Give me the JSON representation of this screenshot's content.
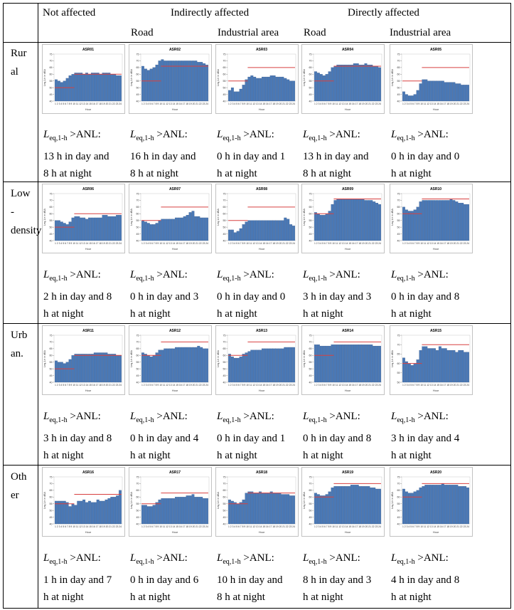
{
  "headers": {
    "not_affected": "Not affected",
    "indirectly": "Indirectly affected",
    "directly": "Directly affected",
    "road": "Road",
    "industrial": "Industrial area"
  },
  "row_labels": [
    "Rur\nal",
    "Low\n-\ndensity",
    "Urb\nan.",
    "Oth\ner"
  ],
  "caption": {
    "leq": "L",
    "sub": "eq,1-h",
    "anl": " >ANL:"
  },
  "captions": [
    [
      "13 h in day and\n8 h at night",
      "16 h in day and\n8 h at night",
      "0 h in day and 1\nh at night",
      "13 h in day and\n8 h at night",
      "0 h in day and 0\nh at night"
    ],
    [
      "2 h in day and 8\nh at night",
      "0 h in day and 3\nh at night",
      "0 h in day and 0\nh at night",
      "3 h in day and 3\nh at night",
      "0 h in day and 8\nh at night"
    ],
    [
      "3 h in day and 8\nh at night",
      "0 h in day and 4\nh at night",
      "0 h in day and 1\nh at night",
      "0 h in day and 8\nh at night",
      "3 h in day and 4\nh at night"
    ],
    [
      "1 h in day and 7\nh at night",
      "0 h in day and 6\nh at night",
      "10 h in day and\n8 h at night",
      "8 h in day and 3\nh at night",
      "4 h in day and 8\nh at night"
    ]
  ],
  "colors": {
    "bar": "#4a78b5",
    "bar_edge": "#2d4f80",
    "limit": "#d84040"
  },
  "chart_data": [
    {
      "type": "bar",
      "title": "ASR01",
      "xlabel": "Hour",
      "ylabel": "Leq,1-h in dBA",
      "ylim": [
        40,
        75
      ],
      "yticks": [
        40,
        45,
        50,
        55,
        60,
        65,
        70,
        75
      ],
      "xticks": "1 2 3 4 5 6 7 8 9 10 11 12 13 14 15 16 17 18 19 20 21 22 23 24",
      "values": [
        56,
        55,
        54,
        55,
        57,
        59,
        60,
        61,
        61,
        61,
        60,
        61,
        60,
        61,
        61,
        61,
        60,
        61,
        61,
        61,
        60,
        60,
        59,
        59
      ],
      "anl_night": 50,
      "anl_day": 60
    },
    {
      "type": "bar",
      "title": "ASR02",
      "xlabel": "Hour",
      "ylabel": "Leq,1-h in dBA",
      "ylim": [
        40,
        75
      ],
      "yticks": [
        40,
        45,
        50,
        55,
        60,
        65,
        70,
        75
      ],
      "xticks": "1 2 3 4 5 6 7 8 9 10 11 12 13 14 15 16 17 18 19 20 21 22 23 24",
      "values": [
        66,
        64,
        63,
        64,
        65,
        67,
        70,
        71,
        70,
        70,
        70,
        70,
        70,
        70,
        70,
        70,
        70,
        70,
        70,
        70,
        69,
        69,
        68,
        67
      ],
      "anl_night": 55,
      "anl_day": 66
    },
    {
      "type": "bar",
      "title": "ASR03",
      "xlabel": "Hour",
      "ylabel": "Leq,1-h in dBA",
      "ylim": [
        40,
        75
      ],
      "yticks": [
        40,
        45,
        50,
        55,
        60,
        65,
        70,
        75
      ],
      "xticks": "1 2 3 4 5 6 7 8 9 10 11 12 13 14 15 16 17 18 19 20 21 22 23 24",
      "values": [
        48,
        50,
        47,
        47,
        49,
        52,
        56,
        58,
        59,
        58,
        57,
        57,
        58,
        58,
        58,
        59,
        59,
        58,
        58,
        58,
        57,
        56,
        55,
        55
      ],
      "anl_night": 55,
      "anl_day": 65
    },
    {
      "type": "bar",
      "title": "ASR04",
      "xlabel": "Hour",
      "ylabel": "Leq,1-h in dBA",
      "ylim": [
        40,
        75
      ],
      "yticks": [
        40,
        45,
        50,
        55,
        60,
        65,
        70,
        75
      ],
      "xticks": "1 2 3 4 5 6 7 8 9 10 11 12 13 14 15 16 17 18 19 20 21 22 23 24",
      "values": [
        62,
        61,
        60,
        59,
        60,
        62,
        65,
        66,
        67,
        67,
        67,
        67,
        67,
        67,
        68,
        68,
        67,
        67,
        68,
        67,
        67,
        66,
        66,
        65
      ],
      "anl_night": 55,
      "anl_day": 66
    },
    {
      "type": "bar",
      "title": "ASR05",
      "xlabel": "Hour",
      "ylabel": "Leq,1-h in dBA",
      "ylim": [
        40,
        75
      ],
      "yticks": [
        40,
        45,
        50,
        55,
        60,
        65,
        70,
        75
      ],
      "xticks": "1 2 3 4 5 6 7 8 9 10 11 12 13 14 15 16 17 18 19 20 21 22 23 24",
      "values": [
        47,
        45,
        44,
        44,
        45,
        48,
        53,
        56,
        56,
        55,
        55,
        55,
        55,
        55,
        55,
        54,
        54,
        54,
        54,
        53,
        53,
        52,
        52,
        52
      ],
      "anl_night": 55,
      "anl_day": 65
    },
    {
      "type": "bar",
      "title": "ASR06",
      "xlabel": "Hour",
      "ylabel": "Leq,1-h in dBA",
      "ylim": [
        40,
        75
      ],
      "yticks": [
        40,
        45,
        50,
        55,
        60,
        65,
        70,
        75
      ],
      "xticks": "1 2 3 4 5 6 7 8 9 10 11 12 13 14 15 16 17 18 19 20 21 22 23 24",
      "values": [
        55,
        55,
        54,
        53,
        52,
        54,
        57,
        58,
        58,
        57,
        57,
        56,
        57,
        57,
        57,
        57,
        57,
        59,
        59,
        58,
        58,
        58,
        59,
        59
      ],
      "anl_night": 50,
      "anl_day": 60
    },
    {
      "type": "bar",
      "title": "ASR07",
      "xlabel": "Hour",
      "ylabel": "Leq,1-h in dBA",
      "ylim": [
        40,
        75
      ],
      "yticks": [
        40,
        45,
        50,
        55,
        60,
        65,
        70,
        75
      ],
      "xticks": "1 2 3 4 5 6 7 8 9 10 11 12 13 14 15 16 17 18 19 20 21 22 23 24",
      "values": [
        55,
        54,
        53,
        52,
        52,
        53,
        55,
        56,
        56,
        56,
        56,
        56,
        57,
        57,
        57,
        58,
        59,
        61,
        62,
        58,
        58,
        57,
        57,
        57
      ],
      "anl_night": 55,
      "anl_day": 65
    },
    {
      "type": "bar",
      "title": "ASR08",
      "xlabel": "Hour",
      "ylabel": "Leq,1-h in dBA",
      "ylim": [
        40,
        75
      ],
      "yticks": [
        40,
        45,
        50,
        55,
        60,
        65,
        70,
        75
      ],
      "xticks": "1 2 3 4 5 6 7 8 9 10 11 12 13 14 15 16 17 18 19 20 21 22 23 24",
      "values": [
        48,
        48,
        46,
        47,
        49,
        52,
        54,
        55,
        55,
        55,
        55,
        55,
        55,
        55,
        55,
        55,
        55,
        55,
        55,
        55,
        57,
        56,
        52,
        51
      ],
      "anl_night": 55,
      "anl_day": 65
    },
    {
      "type": "bar",
      "title": "ASR09",
      "xlabel": "Hour",
      "ylabel": "Leq,1-h in dBA",
      "ylim": [
        40,
        75
      ],
      "yticks": [
        40,
        45,
        50,
        55,
        60,
        65,
        70,
        75
      ],
      "xticks": "1 2 3 4 5 6 7 8 9 10 11 12 13 14 15 16 17 18 19 20 21 22 23 24",
      "values": [
        61,
        60,
        59,
        59,
        60,
        62,
        67,
        70,
        71,
        71,
        71,
        71,
        71,
        71,
        71,
        71,
        71,
        71,
        70,
        70,
        70,
        69,
        68,
        67
      ],
      "anl_night": 60,
      "anl_day": 71
    },
    {
      "type": "bar",
      "title": "ASR10",
      "xlabel": "Hour",
      "ylabel": "Leq,1-h in dBA",
      "ylim": [
        40,
        75
      ],
      "yticks": [
        40,
        45,
        50,
        55,
        60,
        65,
        70,
        75
      ],
      "xticks": "1 2 3 4 5 6 7 8 9 10 11 12 13 14 15 16 17 18 19 20 21 22 23 24",
      "values": [
        65,
        63,
        62,
        62,
        63,
        65,
        69,
        70,
        70,
        70,
        70,
        70,
        70,
        70,
        70,
        70,
        70,
        71,
        70,
        69,
        68,
        68,
        67,
        67
      ],
      "anl_night": 60,
      "anl_day": 71
    },
    {
      "type": "bar",
      "title": "ASR11",
      "xlabel": "Hour",
      "ylabel": "Leq,1-h in dBA",
      "ylim": [
        40,
        75
      ],
      "yticks": [
        40,
        45,
        50,
        55,
        60,
        65,
        70,
        75
      ],
      "xticks": "1 2 3 4 5 6 7 8 9 10 11 12 13 14 15 16 17 18 19 20 21 22 23 24",
      "values": [
        56,
        55,
        55,
        54,
        55,
        57,
        60,
        61,
        61,
        61,
        61,
        61,
        61,
        61,
        62,
        62,
        62,
        62,
        62,
        61,
        61,
        61,
        60,
        60
      ],
      "anl_night": 50,
      "anl_day": 60
    },
    {
      "type": "bar",
      "title": "ASR12",
      "xlabel": "Hour",
      "ylabel": "Leq,1-h in dBA",
      "ylim": [
        40,
        75
      ],
      "yticks": [
        40,
        45,
        50,
        55,
        60,
        65,
        70,
        75
      ],
      "xticks": "1 2 3 4 5 6 7 8 9 10 11 12 13 14 15 16 17 18 19 20 21 22 23 24",
      "values": [
        62,
        61,
        60,
        59,
        60,
        62,
        64,
        64,
        65,
        65,
        65,
        65,
        66,
        66,
        66,
        66,
        66,
        66,
        66,
        66,
        67,
        66,
        65,
        65
      ],
      "anl_night": 60,
      "anl_day": 70
    },
    {
      "type": "bar",
      "title": "ASR13",
      "xlabel": "Hour",
      "ylabel": "Leq,1-h in dBA",
      "ylim": [
        40,
        75
      ],
      "yticks": [
        40,
        45,
        50,
        55,
        60,
        65,
        70,
        75
      ],
      "xticks": "1 2 3 4 5 6 7 8 9 10 11 12 13 14 15 16 17 18 19 20 21 22 23 24",
      "values": [
        61,
        59,
        58,
        58,
        59,
        61,
        62,
        63,
        64,
        64,
        64,
        64,
        65,
        65,
        65,
        65,
        65,
        65,
        65,
        65,
        66,
        66,
        66,
        66
      ],
      "anl_night": 60,
      "anl_day": 70
    },
    {
      "type": "bar",
      "title": "ASR14",
      "xlabel": "Hour",
      "ylabel": "Leq,1-h in dBA",
      "ylim": [
        40,
        75
      ],
      "yticks": [
        40,
        45,
        50,
        55,
        60,
        65,
        70,
        75
      ],
      "xticks": "1 2 3 4 5 6 7 8 9 10 11 12 13 14 15 16 17 18 19 20 21 22 23 24",
      "values": [
        68,
        68,
        67,
        67,
        67,
        67,
        68,
        68,
        68,
        68,
        68,
        68,
        68,
        68,
        68,
        68,
        68,
        68,
        68,
        68,
        68,
        67,
        67,
        67
      ],
      "anl_night": 60,
      "anl_day": 70
    },
    {
      "type": "bar",
      "title": "ASR15",
      "xlabel": "Hour",
      "ylabel": "Leq,1-h in dBA",
      "ylim": [
        50,
        75
      ],
      "yticks": [
        50,
        55,
        60,
        65,
        70,
        75
      ],
      "xticks": "1 2 3 4 5 6 7 8 9 10 11 12 13 14 15 16 17 18 19 20 21 22 23 24",
      "values": [
        63,
        61,
        60,
        59,
        60,
        62,
        67,
        69,
        69,
        68,
        68,
        68,
        67,
        69,
        68,
        68,
        67,
        67,
        67,
        66,
        67,
        67,
        66,
        66
      ],
      "anl_night": 60,
      "anl_day": 70
    },
    {
      "type": "bar",
      "title": "ASR16",
      "xlabel": "Hour",
      "ylabel": "Leq,1-h in dBA",
      "ylim": [
        40,
        75
      ],
      "yticks": [
        40,
        45,
        50,
        55,
        60,
        65,
        70,
        75
      ],
      "xticks": "1 2 3 4 5 6 7 8 9 10 11 12 13 14 15 16 17 18 19 20 21 22 23 24",
      "values": [
        57,
        57,
        57,
        57,
        56,
        53,
        55,
        54,
        57,
        57,
        58,
        56,
        57,
        56,
        56,
        58,
        57,
        57,
        58,
        59,
        60,
        60,
        61,
        65
      ],
      "anl_night": 55,
      "anl_day": 62
    },
    {
      "type": "bar",
      "title": "ASR17",
      "xlabel": "Hour",
      "ylabel": "Leq,1-h in dBA",
      "ylim": [
        40,
        75
      ],
      "yticks": [
        40,
        45,
        50,
        55,
        60,
        65,
        70,
        75
      ],
      "xticks": "1 2 3 4 5 6 7 8 9 10 11 12 13 14 15 16 17 18 19 20 21 22 23 24",
      "values": [
        54,
        54,
        53,
        53,
        54,
        56,
        58,
        59,
        59,
        59,
        59,
        59,
        60,
        60,
        60,
        60,
        61,
        61,
        62,
        60,
        60,
        60,
        59,
        59
      ],
      "anl_night": 55,
      "anl_day": 63
    },
    {
      "type": "bar",
      "title": "ASR18",
      "xlabel": "Hour",
      "ylabel": "Leq,1-h in dBA",
      "ylim": [
        40,
        75
      ],
      "yticks": [
        40,
        45,
        50,
        55,
        60,
        65,
        70,
        75
      ],
      "xticks": "1 2 3 4 5 6 7 8 9 10 11 12 13 14 15 16 17 18 19 20 21 22 23 24",
      "values": [
        58,
        57,
        56,
        55,
        56,
        58,
        63,
        64,
        64,
        63,
        63,
        64,
        63,
        63,
        63,
        64,
        63,
        63,
        63,
        62,
        62,
        62,
        61,
        61
      ],
      "anl_night": 55,
      "anl_day": 63
    },
    {
      "type": "bar",
      "title": "ASR19",
      "xlabel": "Hour",
      "ylabel": "Leq,1-h in dBA",
      "ylim": [
        40,
        75
      ],
      "yticks": [
        40,
        45,
        50,
        55,
        60,
        65,
        70,
        75
      ],
      "xticks": "1 2 3 4 5 6 7 8 9 10 11 12 13 14 15 16 17 18 19 20 21 22 23 24",
      "values": [
        63,
        62,
        61,
        61,
        62,
        64,
        67,
        68,
        68,
        68,
        68,
        68,
        68,
        69,
        69,
        69,
        68,
        68,
        68,
        68,
        67,
        67,
        66,
        66
      ],
      "anl_night": 60,
      "anl_day": 70
    },
    {
      "type": "bar",
      "title": "ASR20",
      "xlabel": "Hour",
      "ylabel": "Leq,1-h in dBA",
      "ylim": [
        40,
        75
      ],
      "yticks": [
        40,
        45,
        50,
        55,
        60,
        65,
        70,
        75
      ],
      "xticks": "1 2 3 4 5 6 7 8 9 10 11 12 13 14 15 16 17 18 19 20 21 22 23 24",
      "values": [
        66,
        64,
        63,
        63,
        64,
        65,
        67,
        68,
        69,
        69,
        69,
        69,
        69,
        69,
        70,
        69,
        69,
        69,
        69,
        69,
        68,
        68,
        68,
        67
      ],
      "anl_night": 60,
      "anl_day": 70
    }
  ]
}
